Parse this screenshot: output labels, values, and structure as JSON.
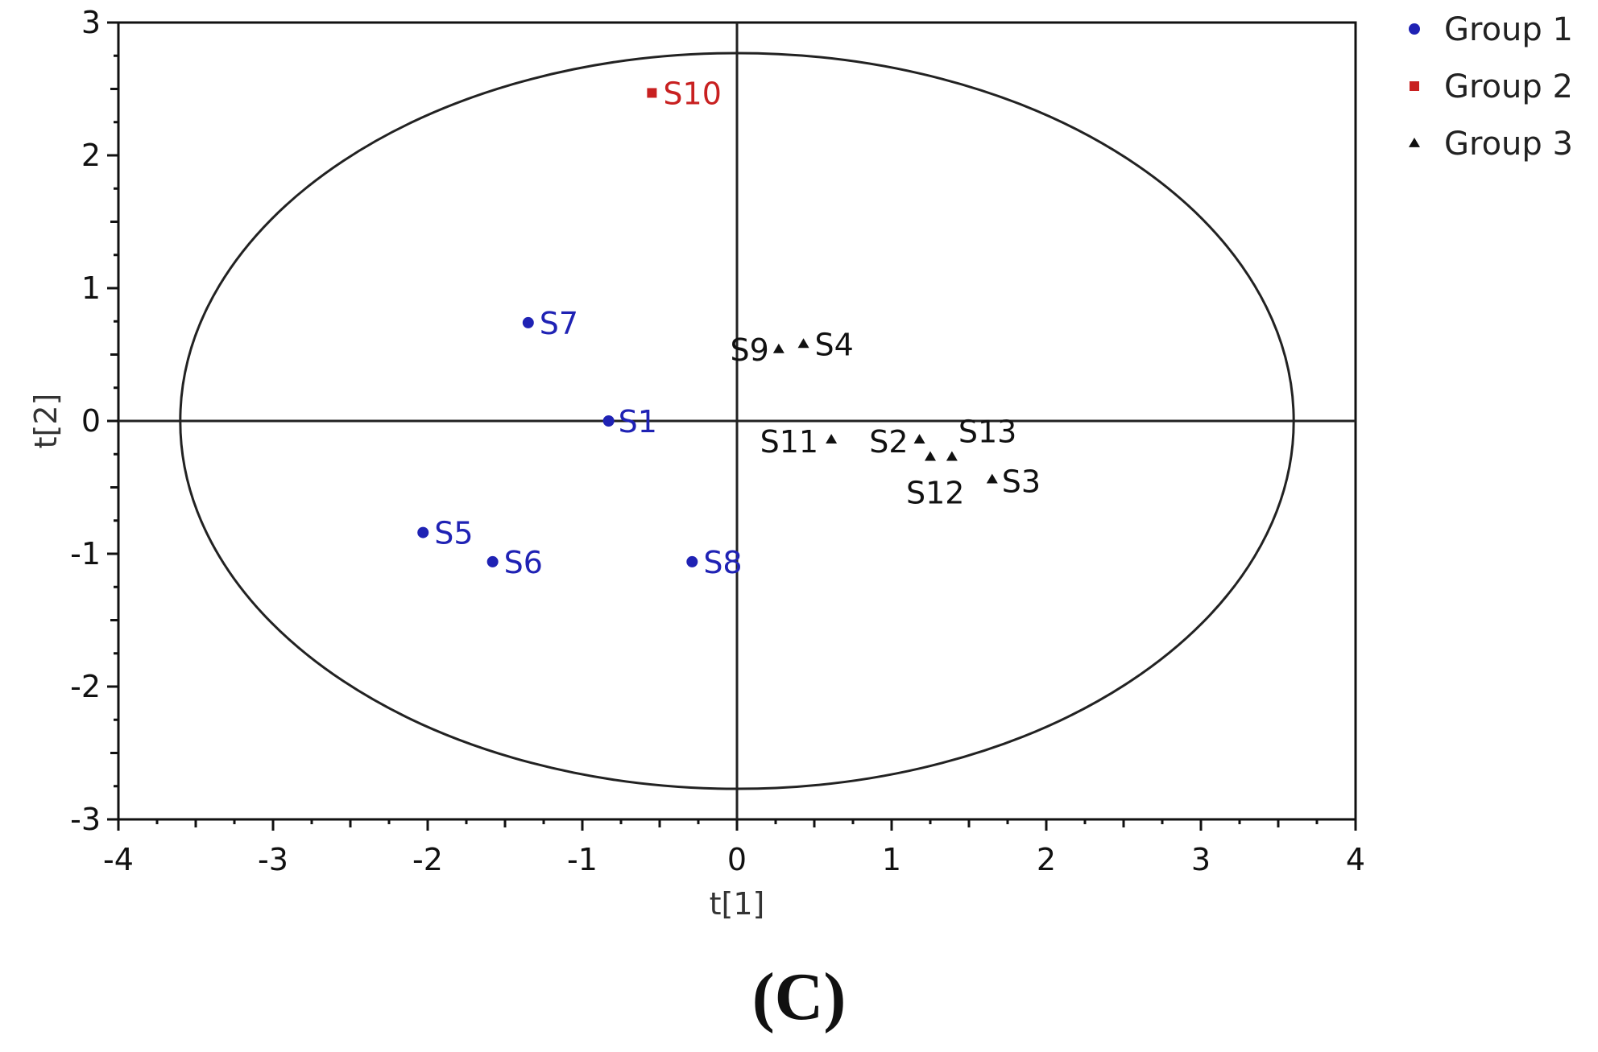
{
  "chart_data": {
    "type": "scatter",
    "xlabel": "t[1]",
    "ylabel": "t[2]",
    "xlim": [
      -4,
      4
    ],
    "ylim": [
      -3,
      3
    ],
    "x_ticks": [
      -4,
      -3,
      -2,
      -1,
      0,
      1,
      2,
      3,
      4
    ],
    "y_ticks": [
      -3,
      -2,
      -1,
      0,
      1,
      2,
      3
    ],
    "ellipse": {
      "cx": 0,
      "cy": 0,
      "rx": 3.6,
      "ry": 2.77
    },
    "reference_lines": {
      "x": 0,
      "y": 0
    },
    "grid": false,
    "legend_position": "top-right",
    "series": [
      {
        "name": "Group 1",
        "marker": "circle",
        "color": "#1f22b4",
        "points": [
          {
            "label": "S7",
            "x": -1.35,
            "y": 0.74
          },
          {
            "label": "S1",
            "x": -0.83,
            "y": 0.0
          },
          {
            "label": "S5",
            "x": -2.03,
            "y": -0.84
          },
          {
            "label": "S6",
            "x": -1.58,
            "y": -1.06
          },
          {
            "label": "S8",
            "x": -0.29,
            "y": -1.06
          }
        ]
      },
      {
        "name": "Group 2",
        "marker": "square",
        "color": "#c82020",
        "points": [
          {
            "label": "S10",
            "x": -0.55,
            "y": 2.47
          }
        ]
      },
      {
        "name": "Group 3",
        "marker": "triangle",
        "color": "#111111",
        "points": [
          {
            "label": "S9",
            "x": 0.27,
            "y": 0.54
          },
          {
            "label": "S4",
            "x": 0.43,
            "y": 0.58
          },
          {
            "label": "S11",
            "x": 0.61,
            "y": -0.14
          },
          {
            "label": "S2",
            "x": 1.18,
            "y": -0.14
          },
          {
            "label": "S13",
            "x": 1.39,
            "y": -0.27
          },
          {
            "label": "S12",
            "x": 1.25,
            "y": -0.27
          },
          {
            "label": "S3",
            "x": 1.65,
            "y": -0.44
          }
        ]
      }
    ]
  },
  "figure": {
    "panel_label": "(C)"
  }
}
